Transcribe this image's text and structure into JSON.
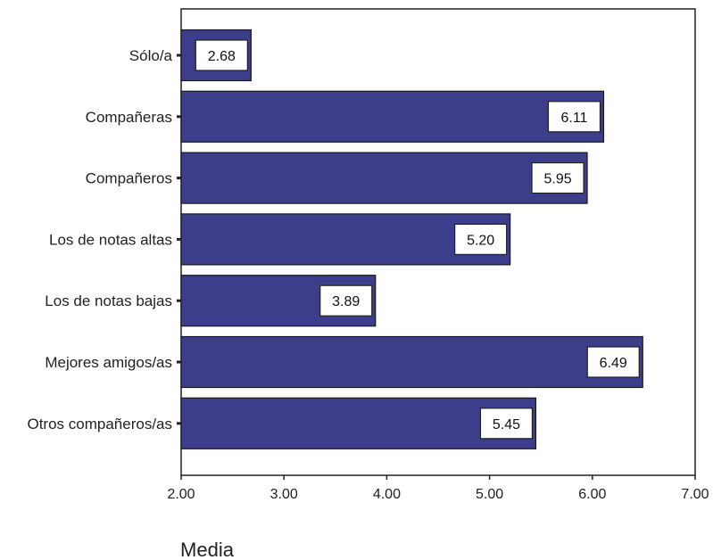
{
  "chart_data": {
    "type": "bar",
    "orientation": "horizontal",
    "categories": [
      "Sólo/a",
      "Compañeras",
      "Compañeros",
      "Los de notas altas",
      "Los de notas bajas",
      "Mejores amigos/as",
      "Otros compañeros/as"
    ],
    "values": [
      2.68,
      6.11,
      5.95,
      5.2,
      3.89,
      6.49,
      5.45
    ],
    "value_labels": [
      "2.68",
      "6.11",
      "5.95",
      "5.20",
      "3.89",
      "6.49",
      "5.45"
    ],
    "xlabel": "Media",
    "xlim": [
      2.0,
      7.0
    ],
    "x_ticks": [
      2.0,
      3.0,
      4.0,
      5.0,
      6.0,
      7.0
    ],
    "x_tick_labels": [
      "2.00",
      "3.00",
      "4.00",
      "5.00",
      "6.00",
      "7.00"
    ],
    "grid": false,
    "bar_color": "#3c3d8b",
    "bar_edge_color": "#1a1a1a"
  }
}
